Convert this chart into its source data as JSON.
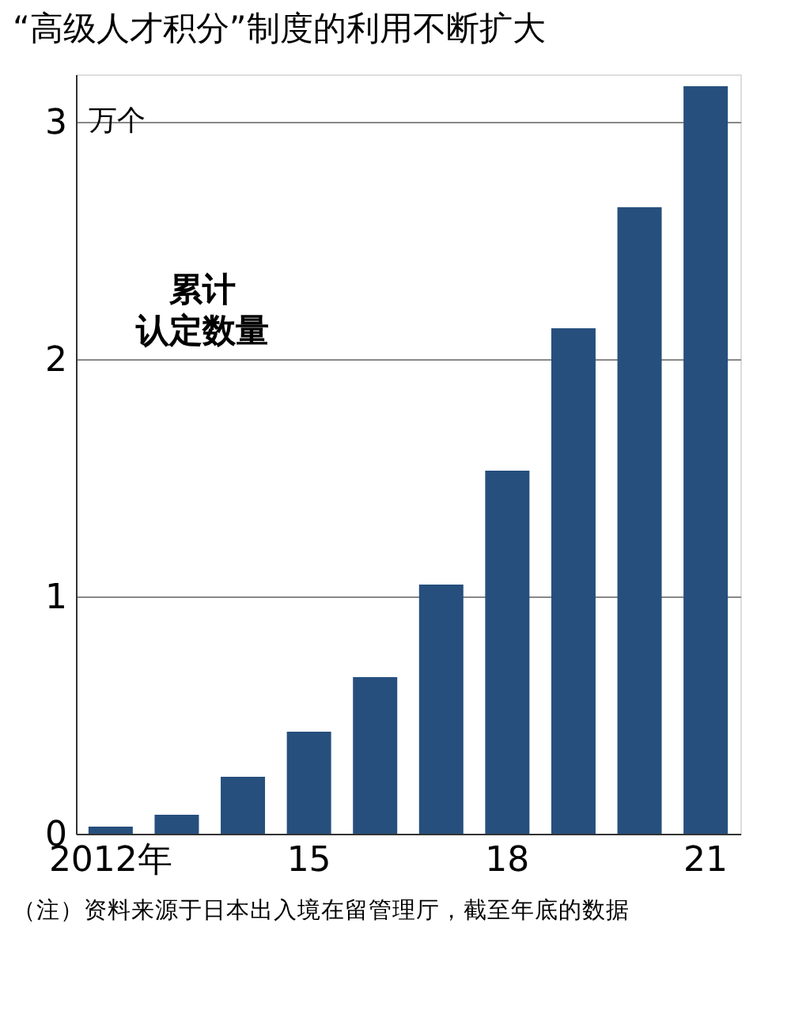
{
  "chart_data": {
    "type": "bar",
    "title": "“高级人才积分”制度的利用不断扩大",
    "categories": [
      "2012年",
      null,
      null,
      "15",
      null,
      null,
      "18",
      null,
      null,
      "21"
    ],
    "values": [
      0.03,
      0.08,
      0.24,
      0.43,
      0.66,
      1.05,
      1.53,
      2.13,
      2.64,
      3.15
    ],
    "color": "#264f7d",
    "ylim": [
      0,
      3.2
    ],
    "yticks": [
      0,
      1,
      2,
      3
    ],
    "grid": "y",
    "ylabel": "万个",
    "annotations": [
      "累计",
      "认定数量",
      "（注）资料来源于日本出入境在留管理厅，截至年底的数据"
    ]
  }
}
